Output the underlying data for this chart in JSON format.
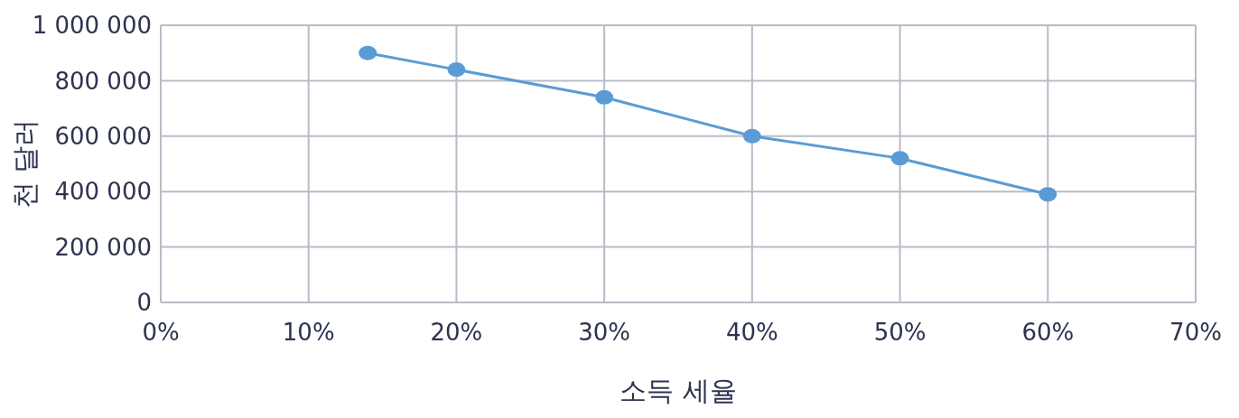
{
  "chart_data": {
    "type": "line",
    "xlabel": "소득 세율",
    "ylabel": "천 달러",
    "x": [
      14,
      20,
      30,
      40,
      50,
      60
    ],
    "series": [
      {
        "color": "#5b9bd5",
        "values": [
          900000,
          840000,
          740000,
          600000,
          520000,
          390000
        ]
      }
    ],
    "xlim": [
      0,
      70
    ],
    "xticks": [
      {
        "value": 0,
        "label": "0%"
      },
      {
        "value": 10,
        "label": "10%"
      },
      {
        "value": 20,
        "label": "20%"
      },
      {
        "value": 30,
        "label": "30%"
      },
      {
        "value": 40,
        "label": "40%"
      },
      {
        "value": 50,
        "label": "50%"
      },
      {
        "value": 60,
        "label": "60%"
      },
      {
        "value": 70,
        "label": "70%"
      }
    ],
    "ylim": [
      0,
      1000000
    ],
    "yticks": [
      0,
      {
        "value": 200000,
        "label": "200 000"
      },
      {
        "value": 400000,
        "label": "400 000"
      },
      {
        "value": 600000,
        "label": "600 000"
      },
      {
        "value": 800000,
        "label": "800 000"
      },
      {
        "value": 1000000,
        "label": "1 000 000"
      }
    ],
    "grid": true,
    "marker": "circle",
    "line_style": "solid"
  }
}
